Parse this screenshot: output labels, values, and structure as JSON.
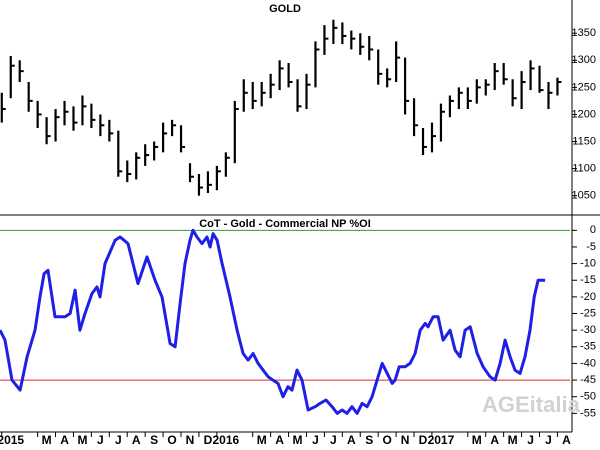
{
  "chart_data": [
    {
      "type": "ohlc",
      "title": "GOLD",
      "color": "#000000",
      "xlim": [
        -0.6,
        31.2
      ],
      "ylim": [
        1018,
        1404
      ],
      "yticks": [
        1050,
        1100,
        1150,
        1200,
        1250,
        1300,
        1350
      ],
      "x": [
        -0.5,
        0,
        0.5,
        1,
        1.5,
        2,
        2.5,
        3,
        3.5,
        4,
        4.5,
        5,
        5.5,
        6,
        6.5,
        7,
        7.5,
        8,
        8.5,
        9,
        9.5,
        10,
        10.5,
        11,
        11.5,
        12,
        12.5,
        13,
        13.5,
        14,
        14.5,
        15,
        15.5,
        16,
        16.5,
        17,
        17.5,
        18,
        18.5,
        19,
        19.5,
        20,
        20.5,
        21,
        21.5,
        22,
        22.5,
        23,
        23.5,
        24,
        24.5,
        25,
        25.5,
        26,
        26.5,
        27,
        27.5,
        28,
        28.5,
        29,
        29.5,
        30,
        30.5
      ],
      "high": [
        1240,
        1308,
        1300,
        1260,
        1225,
        1195,
        1210,
        1225,
        1215,
        1235,
        1220,
        1200,
        1190,
        1170,
        1115,
        1130,
        1145,
        1150,
        1185,
        1190,
        1180,
        1110,
        1090,
        1095,
        1105,
        1130,
        1225,
        1265,
        1260,
        1260,
        1275,
        1300,
        1295,
        1265,
        1275,
        1335,
        1365,
        1375,
        1370,
        1355,
        1350,
        1345,
        1320,
        1285,
        1335,
        1305,
        1230,
        1175,
        1185,
        1220,
        1235,
        1250,
        1250,
        1265,
        1265,
        1295,
        1295,
        1265,
        1280,
        1300,
        1290,
        1260,
        1268
      ],
      "low": [
        1185,
        1230,
        1260,
        1205,
        1175,
        1145,
        1150,
        1180,
        1170,
        1180,
        1175,
        1160,
        1150,
        1085,
        1075,
        1080,
        1105,
        1115,
        1130,
        1160,
        1130,
        1075,
        1050,
        1055,
        1060,
        1085,
        1110,
        1205,
        1210,
        1215,
        1230,
        1245,
        1250,
        1205,
        1210,
        1250,
        1310,
        1330,
        1330,
        1320,
        1310,
        1300,
        1255,
        1250,
        1260,
        1200,
        1160,
        1125,
        1130,
        1150,
        1195,
        1210,
        1210,
        1220,
        1235,
        1245,
        1255,
        1215,
        1210,
        1245,
        1240,
        1210,
        1235
      ],
      "close": [
        1210,
        1290,
        1280,
        1225,
        1200,
        1160,
        1195,
        1205,
        1185,
        1215,
        1190,
        1180,
        1165,
        1095,
        1090,
        1120,
        1125,
        1140,
        1165,
        1180,
        1140,
        1085,
        1065,
        1070,
        1095,
        1120,
        1210,
        1240,
        1225,
        1240,
        1255,
        1285,
        1260,
        1215,
        1255,
        1320,
        1340,
        1360,
        1345,
        1340,
        1325,
        1320,
        1275,
        1265,
        1305,
        1225,
        1180,
        1140,
        1160,
        1205,
        1225,
        1240,
        1225,
        1250,
        1255,
        1280,
        1265,
        1230,
        1260,
        1285,
        1245,
        1240,
        1260
      ]
    },
    {
      "type": "line",
      "title": "CoT - Gold - Commercial NP %OI",
      "color": "#1f1fe6",
      "watermark": "AGEitalia",
      "xlim": [
        -0.6,
        31.2
      ],
      "ylim": [
        -60,
        4
      ],
      "yticks": [
        0,
        -5,
        -10,
        -15,
        -20,
        -25,
        -30,
        -35,
        -40,
        -45,
        -50,
        -55
      ],
      "hlines": [
        {
          "value": 0,
          "color": "#2e9e2e"
        },
        {
          "value": -45,
          "color": "#e02828"
        }
      ],
      "xticks": [
        {
          "value": 0,
          "label": "2015"
        },
        {
          "value": 2,
          "label": "M"
        },
        {
          "value": 3,
          "label": "A"
        },
        {
          "value": 4,
          "label": "M"
        },
        {
          "value": 5,
          "label": "J"
        },
        {
          "value": 6,
          "label": "J"
        },
        {
          "value": 7,
          "label": "A"
        },
        {
          "value": 8,
          "label": "S"
        },
        {
          "value": 9,
          "label": "O"
        },
        {
          "value": 10,
          "label": "N"
        },
        {
          "value": 11,
          "label": "D"
        },
        {
          "value": 12,
          "label": "2016"
        },
        {
          "value": 14,
          "label": "M"
        },
        {
          "value": 15,
          "label": "A"
        },
        {
          "value": 16,
          "label": "M"
        },
        {
          "value": 17,
          "label": "J"
        },
        {
          "value": 18,
          "label": "J"
        },
        {
          "value": 19,
          "label": "A"
        },
        {
          "value": 20,
          "label": "S"
        },
        {
          "value": 21,
          "label": "O"
        },
        {
          "value": 22,
          "label": "N"
        },
        {
          "value": 23,
          "label": "D"
        },
        {
          "value": 24,
          "label": "2017"
        },
        {
          "value": 26,
          "label": "M"
        },
        {
          "value": 27,
          "label": "A"
        },
        {
          "value": 28,
          "label": "M"
        },
        {
          "value": 29,
          "label": "J"
        },
        {
          "value": 30,
          "label": "J"
        },
        {
          "value": 31,
          "label": "A"
        }
      ],
      "x": [
        -0.6,
        -0.32,
        0.07,
        0.52,
        0.91,
        1.35,
        1.63,
        1.86,
        2.08,
        2.47,
        3.03,
        3.31,
        3.59,
        3.86,
        4.14,
        4.53,
        4.81,
        4.98,
        5.26,
        5.82,
        6.1,
        6.54,
        6.82,
        7.1,
        7.6,
        8.05,
        8.44,
        8.89,
        9.17,
        9.45,
        9.72,
        10.0,
        10.17,
        10.39,
        10.67,
        10.95,
        11.12,
        11.29,
        11.51,
        11.79,
        12.23,
        12.63,
        12.96,
        13.24,
        13.52,
        13.8,
        14.08,
        14.36,
        14.63,
        14.91,
        15.19,
        15.47,
        15.69,
        15.97,
        16.25,
        16.59,
        16.98,
        17.26,
        17.59,
        17.93,
        18.21,
        18.49,
        18.76,
        19.04,
        19.32,
        19.6,
        19.88,
        20.16,
        20.44,
        20.72,
        21.0,
        21.28,
        21.44,
        21.67,
        22.0,
        22.28,
        22.56,
        22.84,
        23.12,
        23.28,
        23.56,
        23.84,
        24.12,
        24.51,
        24.79,
        25.07,
        25.35,
        25.63,
        26.02,
        26.35,
        26.74,
        27.02,
        27.3,
        27.58,
        27.86,
        28.13,
        28.41,
        28.69,
        28.97,
        29.2,
        29.42,
        29.81
      ],
      "values": [
        -30,
        -33,
        -45,
        -48,
        -38,
        -30,
        -20,
        -13,
        -12,
        -26,
        -26,
        -25,
        -18,
        -30,
        -25,
        -19,
        -17,
        -20,
        -10,
        -3,
        -2,
        -4,
        -10,
        -16,
        -8,
        -15,
        -20,
        -34,
        -35,
        -22,
        -10,
        -3,
        0,
        -2,
        -4,
        -2,
        -5,
        -1,
        -3,
        -10,
        -20,
        -30,
        -37,
        -39,
        -37,
        -40,
        -42,
        -44,
        -45,
        -46,
        -50,
        -47,
        -48,
        -42,
        -45,
        -54,
        -53,
        -52,
        -51,
        -53,
        -55,
        -54,
        -55,
        -53,
        -55,
        -52,
        -53,
        -50,
        -45,
        -40,
        -43,
        -46,
        -45,
        -41,
        -41,
        -40,
        -37,
        -30,
        -28,
        -29,
        -26,
        -26,
        -33,
        -30,
        -36,
        -38,
        -30,
        -29,
        -37,
        -41,
        -44,
        -45,
        -40,
        -33,
        -38,
        -42,
        -43,
        -38,
        -30,
        -20,
        -15,
        -15
      ]
    }
  ]
}
